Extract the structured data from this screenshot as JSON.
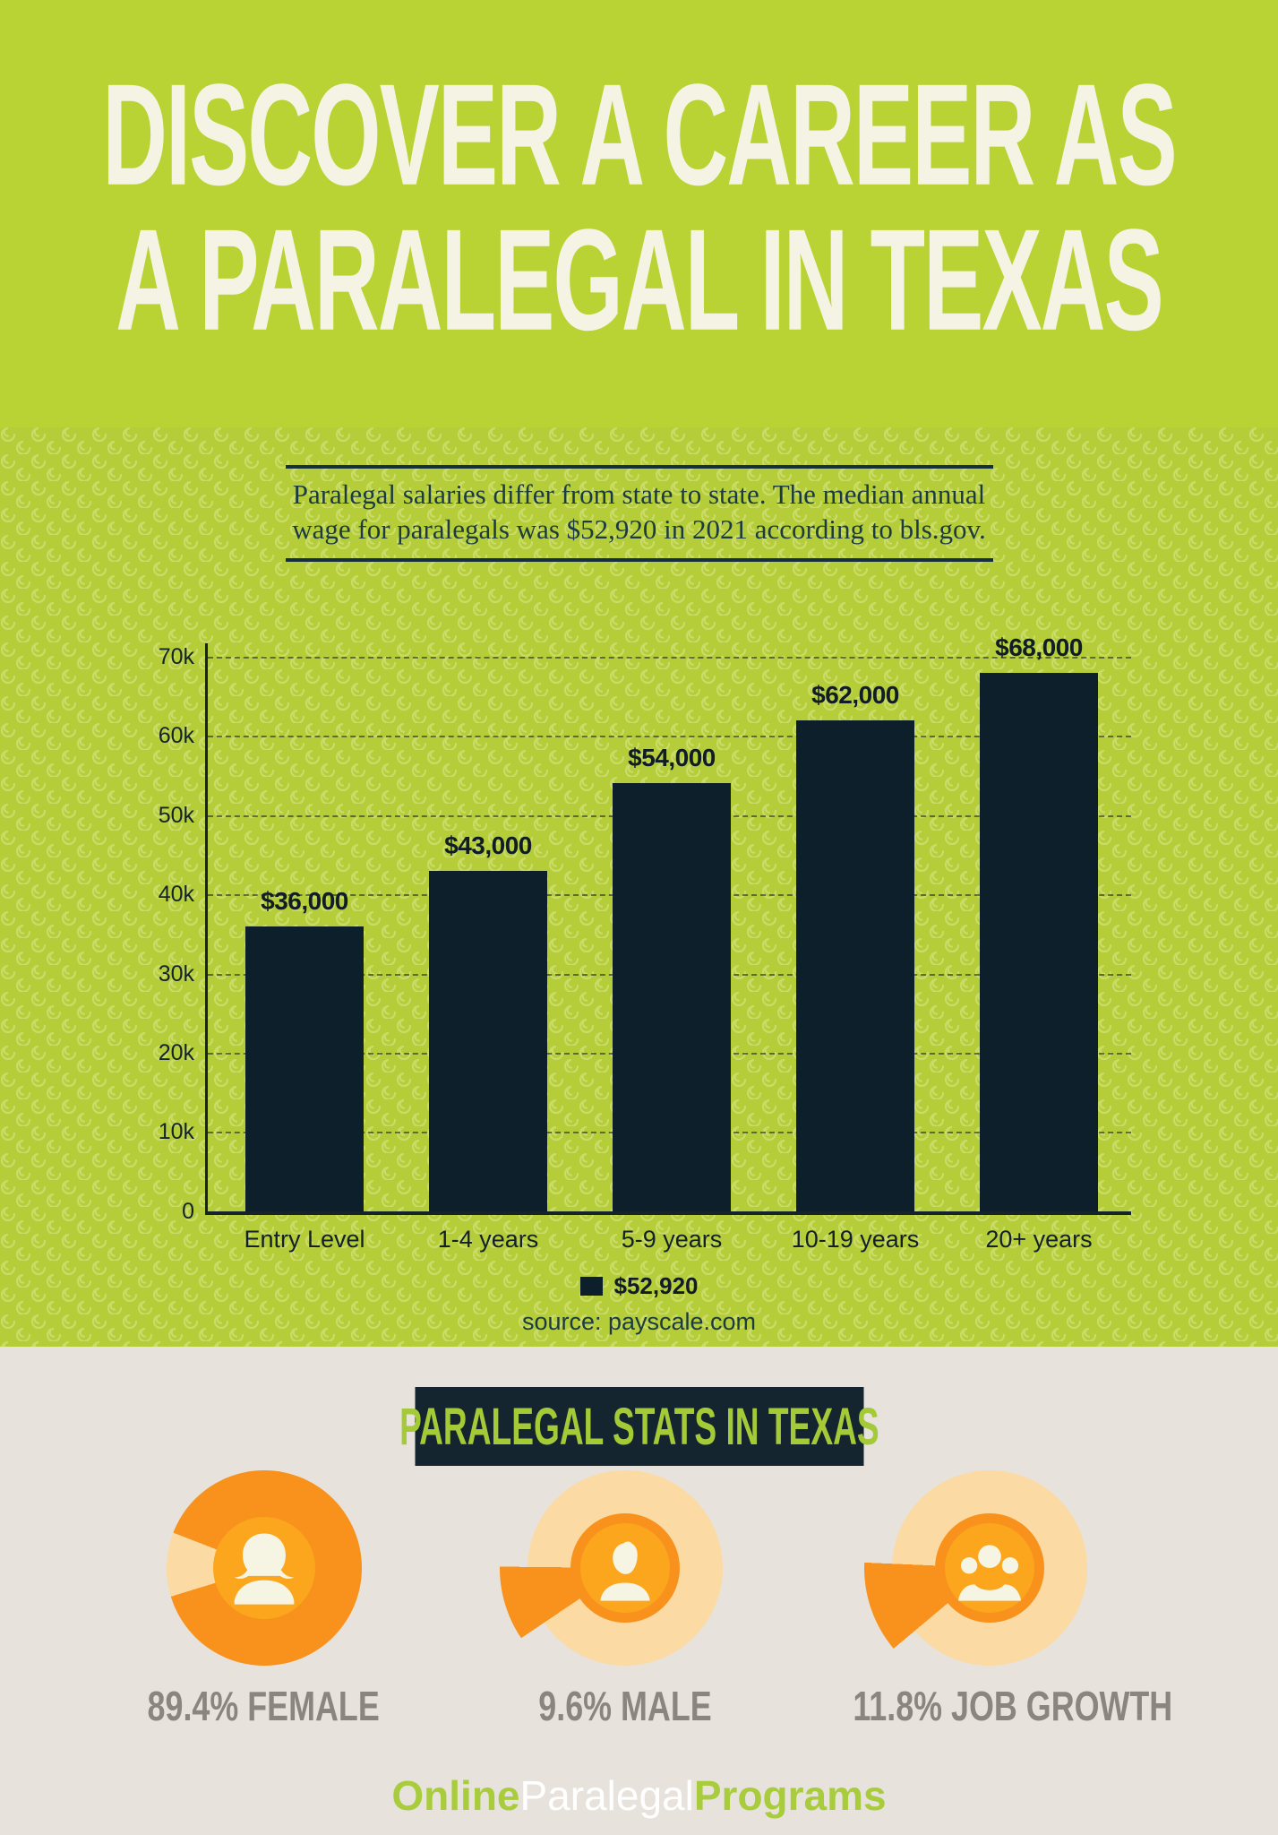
{
  "title": {
    "line1": "DISCOVER A CAREER AS",
    "line2": "A PARALEGAL IN TEXAS"
  },
  "intro": {
    "text": "Paralegal salaries differ from state to state. The median annual wage for paralegals was $52,920 in 2021 according to bls.gov."
  },
  "chart_data": {
    "type": "bar",
    "title": "",
    "categories": [
      "Entry Level",
      "1-4 years",
      "5-9 years",
      "10-19 years",
      "20+ years"
    ],
    "values": [
      36000,
      43000,
      54000,
      62000,
      68000
    ],
    "bar_labels": [
      "$36,000",
      "$43,000",
      "$54,000",
      "$62,000",
      "$68,000"
    ],
    "xlabel": "",
    "ylabel": "",
    "y_ticks": [
      "70k",
      "60k",
      "50k",
      "40k",
      "30k",
      "20k",
      "10k",
      "0"
    ],
    "ylim": [
      0,
      70000
    ],
    "grid": "horizontal-dashed",
    "legend": {
      "label": "$52,920",
      "position": "bottom-center"
    },
    "source": "source: payscale.com",
    "bar_color": "#0D1F2A"
  },
  "stats": {
    "heading": "PARALEGAL STATS IN TEXAS",
    "items": [
      {
        "label": "89.4% FEMALE",
        "value_pct": 89.4,
        "icon": "female-silhouette"
      },
      {
        "label": "9.6% MALE",
        "value_pct": 9.6,
        "icon": "male-silhouette"
      },
      {
        "label": "11.8% JOB GROWTH",
        "value_pct": 11.8,
        "icon": "people-group-silhouette"
      }
    ]
  },
  "footer": {
    "logo_parts": [
      {
        "text": "Online",
        "color": "#A8CC3B",
        "bold": true
      },
      {
        "text": "Paralegal",
        "color": "#FFFFFF",
        "bold": false
      },
      {
        "text": "Programs",
        "color": "#A8CC3B",
        "bold": true
      }
    ]
  },
  "colors": {
    "header_green": "#BAD334",
    "pattern_green": "#B4CD38",
    "pattern_swirl": "#DCE88E",
    "dark_navy": "#0D1F2A",
    "cream_text": "#F5F4E4",
    "intro_text": "#1B3A42",
    "beige_background": "#E7E3DC",
    "orange": "#F8921D",
    "yellow_orange": "#FBA61C",
    "peach": "#FBDAA3",
    "silhouette_cream": "#F6F4E2",
    "stat_label_gray": "#8B8580",
    "badge_green": "#A4CB37"
  }
}
